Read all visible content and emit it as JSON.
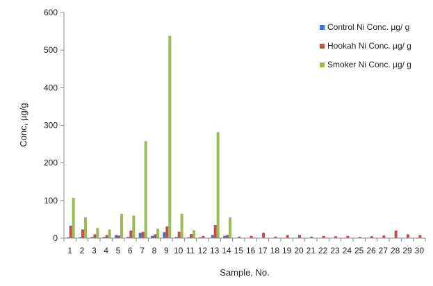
{
  "chart_data": {
    "type": "bar",
    "title": "",
    "xlabel": "Sample, No.",
    "ylabel": "Conc, µg/g",
    "ylim": [
      0,
      600
    ],
    "yticks": [
      0,
      100,
      200,
      300,
      400,
      500,
      600
    ],
    "grid": false,
    "legend_position": "top-right",
    "categories": [
      "1",
      "2",
      "3",
      "4",
      "5",
      "6",
      "7",
      "8",
      "9",
      "10",
      "11",
      "12",
      "13",
      "14",
      "15",
      "16",
      "17",
      "18",
      "19",
      "20",
      "21",
      "22",
      "23",
      "24",
      "25",
      "26",
      "27",
      "28",
      "29",
      "30"
    ],
    "series": [
      {
        "name": "Control Ni Conc. µg/ g",
        "color": "#4472C4",
        "values": [
          2,
          2,
          3,
          3,
          8,
          3,
          14,
          6,
          16,
          3,
          2,
          2,
          8,
          6,
          0,
          0,
          0,
          0,
          0,
          0,
          0,
          0,
          0,
          0,
          0,
          0,
          0,
          0,
          0,
          0
        ]
      },
      {
        "name": "Hookah Ni Conc. µg/ g",
        "color": "#C0504D",
        "values": [
          33,
          23,
          10,
          8,
          7,
          20,
          17,
          10,
          31,
          17,
          11,
          6,
          35,
          8,
          4,
          6,
          14,
          4,
          8,
          8,
          4,
          6,
          5,
          6,
          3,
          5,
          7,
          20,
          10,
          8
        ]
      },
      {
        "name": "Smoker Ni Conc. µg/ g",
        "color": "#9BBB59",
        "values": [
          107,
          55,
          27,
          23,
          65,
          60,
          258,
          25,
          538,
          65,
          21,
          0,
          282,
          55,
          0,
          0,
          0,
          0,
          0,
          0,
          0,
          0,
          0,
          0,
          0,
          0,
          0,
          0,
          0,
          0
        ]
      }
    ]
  }
}
